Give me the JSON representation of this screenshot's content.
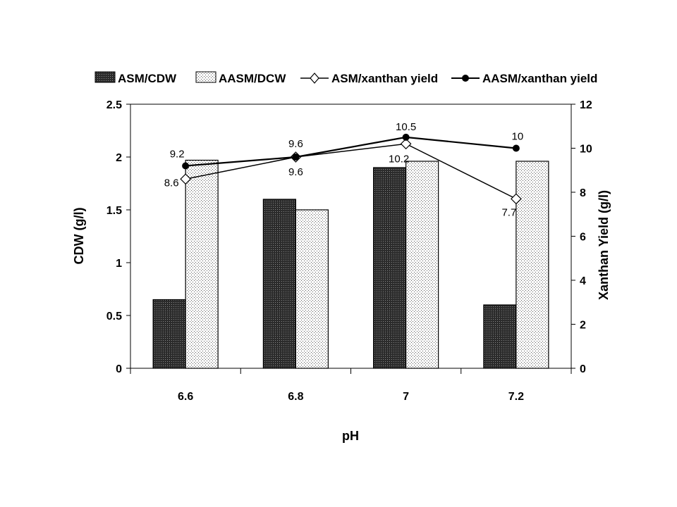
{
  "chart_data": {
    "type": "bar",
    "title": "",
    "xlabel": "pH",
    "ylabel": "CDW (g/l)",
    "y2label": "Xanthan Yield (g/l)",
    "categories": [
      "6.6",
      "6.8",
      "7",
      "7.2"
    ],
    "ylim": [
      0,
      2.5
    ],
    "yticks": [
      "0",
      "0.5",
      "1",
      "1.5",
      "2",
      "2.5"
    ],
    "y2lim": [
      0,
      12
    ],
    "y2ticks": [
      "0",
      "2",
      "4",
      "6",
      "8",
      "10",
      "12"
    ],
    "grid": false,
    "legend_position": "top",
    "series": [
      {
        "name": "ASM/CDW",
        "kind": "bar",
        "axis": "left",
        "values": [
          0.65,
          1.6,
          1.9,
          0.6
        ]
      },
      {
        "name": "AASM/DCW",
        "kind": "bar",
        "axis": "left",
        "values": [
          1.97,
          1.5,
          1.96,
          1.96
        ]
      },
      {
        "name": "ASM/xanthan yield",
        "kind": "line",
        "axis": "right",
        "marker": "diamond",
        "values": [
          8.6,
          9.6,
          10.2,
          7.7
        ],
        "labels": [
          "8.6",
          "9.6",
          "10.2",
          "7.7"
        ]
      },
      {
        "name": "AASM/xanthan yield",
        "kind": "line",
        "axis": "right",
        "marker": "circle",
        "values": [
          9.2,
          9.6,
          10.5,
          10
        ],
        "labels": [
          "9.2",
          "9.6",
          "10.5",
          "10"
        ]
      }
    ]
  }
}
